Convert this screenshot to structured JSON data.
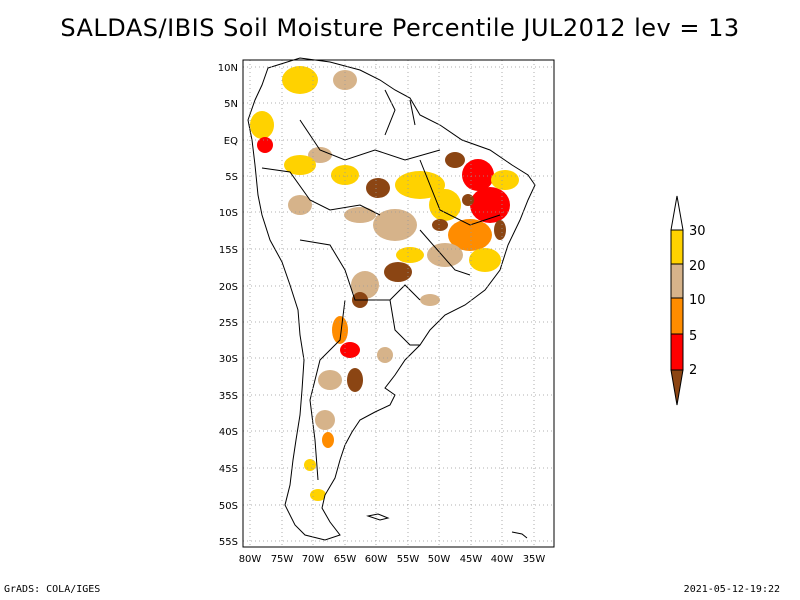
{
  "title": "SALDAS/IBIS Soil Moisture Percentile JUL2012 lev = 13",
  "footer_left": "GrADS: COLA/IGES",
  "footer_right": "2021-05-12-19:22",
  "lat_labels": [
    "10N",
    "5N",
    "EQ",
    "5S",
    "10S",
    "15S",
    "20S",
    "25S",
    "30S",
    "35S",
    "40S",
    "45S",
    "50S",
    "55S"
  ],
  "lon_labels": [
    "80W",
    "75W",
    "70W",
    "65W",
    "60W",
    "55W",
    "50W",
    "45W",
    "40W",
    "35W"
  ],
  "colorbar": {
    "labels": [
      "2",
      "5",
      "10",
      "20",
      "30"
    ],
    "colors": {
      "c30": "#ffd200",
      "c20": "#d6b38a",
      "c10": "#ff8c00",
      "c5": "#ff0000",
      "c2": "#8b4513"
    }
  },
  "colors": {
    "yellow": "#ffd200",
    "tan": "#d6b38a",
    "orange": "#ff8c00",
    "red": "#ff0000",
    "brown": "#8b4513"
  }
}
